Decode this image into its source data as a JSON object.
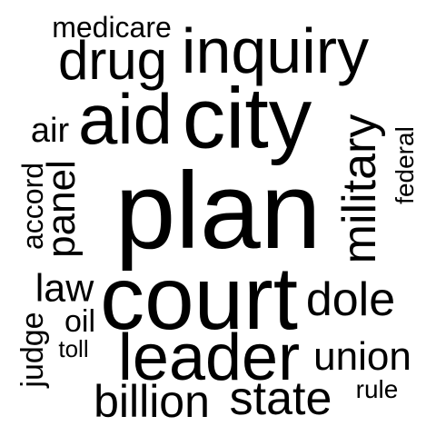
{
  "words": {
    "plan": "plan",
    "court": "court",
    "leader": "leader",
    "city": "city",
    "aid": "aid",
    "inquiry": "inquiry",
    "drug": "drug",
    "medicare": "medicare",
    "air": "air",
    "military": "military",
    "panel": "panel",
    "accord": "accord",
    "federal": "federal",
    "dole": "dole",
    "law": "law",
    "oil": "oil",
    "toll": "toll",
    "judge": "judge",
    "union": "union",
    "rule": "rule",
    "billion": "billion",
    "state": "state"
  },
  "colors": {
    "text": "#000000",
    "background": "#ffffff"
  }
}
